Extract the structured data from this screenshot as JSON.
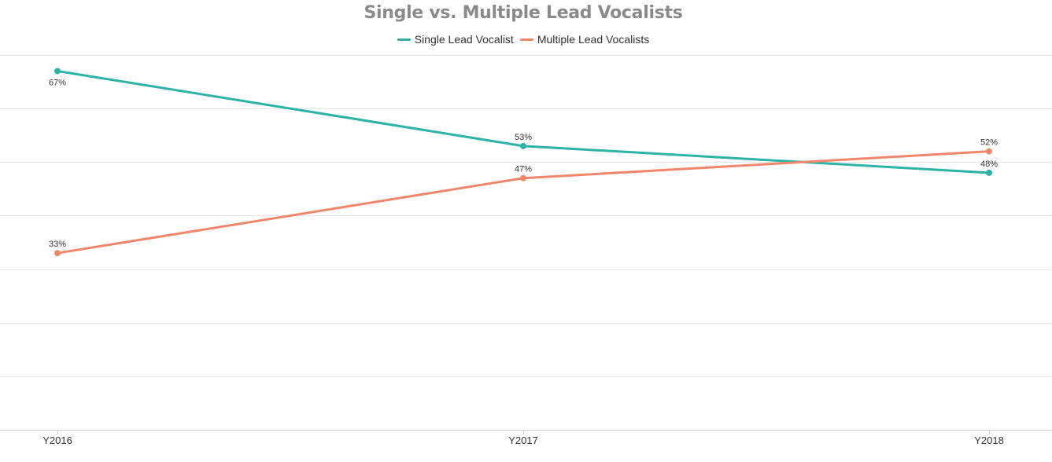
{
  "chart_data": {
    "type": "line",
    "title": "Single vs. Multiple Lead Vocalists",
    "xlabel": "",
    "ylabel": "",
    "categories": [
      "Y2016",
      "Y2017",
      "Y2018"
    ],
    "series": [
      {
        "name": "Single Lead Vocalist",
        "values": [
          67,
          53,
          48
        ],
        "labels": [
          "67%",
          "53%",
          "48%"
        ],
        "label_position": [
          "below",
          "above",
          "above"
        ],
        "color": "#2db3a6"
      },
      {
        "name": "Multiple Lead Vocalists",
        "values": [
          33,
          47,
          52
        ],
        "labels": [
          "33%",
          "47%",
          "52%"
        ],
        "label_position": [
          "above",
          "above",
          "above"
        ],
        "color": "#f0876a"
      }
    ],
    "ylim": [
      0,
      70
    ],
    "y_grid_step": 10,
    "grid": true,
    "legend": "top-center",
    "axis_color": "#cccccc",
    "grid_color": "#e6e6e6"
  }
}
